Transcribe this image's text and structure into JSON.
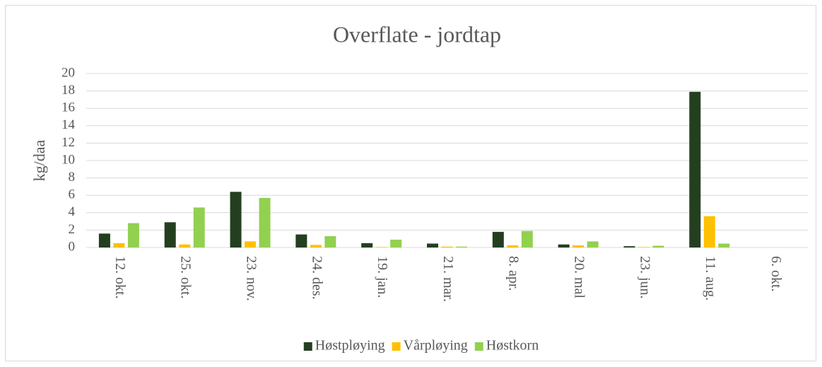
{
  "chart_data": {
    "type": "bar",
    "title": "Overflate - jordtap",
    "ylabel": "kg/daa",
    "categories": [
      "12. okt.",
      "25. okt.",
      "23. nov.",
      "24. des.",
      "19. jan.",
      "21. mar.",
      "8. apr.",
      "20. mal",
      "23. jun.",
      "11. aug.",
      "6. okt."
    ],
    "series": [
      {
        "name": "Høstpløying",
        "color": "#243f20",
        "values": [
          1.6,
          2.9,
          6.4,
          1.5,
          0.5,
          0.45,
          1.8,
          0.35,
          0.15,
          17.9,
          0
        ]
      },
      {
        "name": "Vårpløying",
        "color": "#ffc000",
        "values": [
          0.5,
          0.35,
          0.7,
          0.3,
          0.05,
          0.1,
          0.25,
          0.25,
          0.05,
          3.6,
          0
        ]
      },
      {
        "name": "Høstkorn",
        "color": "#92d050",
        "values": [
          2.8,
          4.6,
          5.7,
          1.3,
          0.9,
          0.1,
          1.9,
          0.7,
          0.2,
          0.45,
          0
        ]
      }
    ],
    "ylim": [
      0,
      20
    ],
    "yticks": [
      0,
      2,
      4,
      6,
      8,
      10,
      12,
      14,
      16,
      18,
      20
    ],
    "grid": true,
    "legend": "bottom"
  }
}
